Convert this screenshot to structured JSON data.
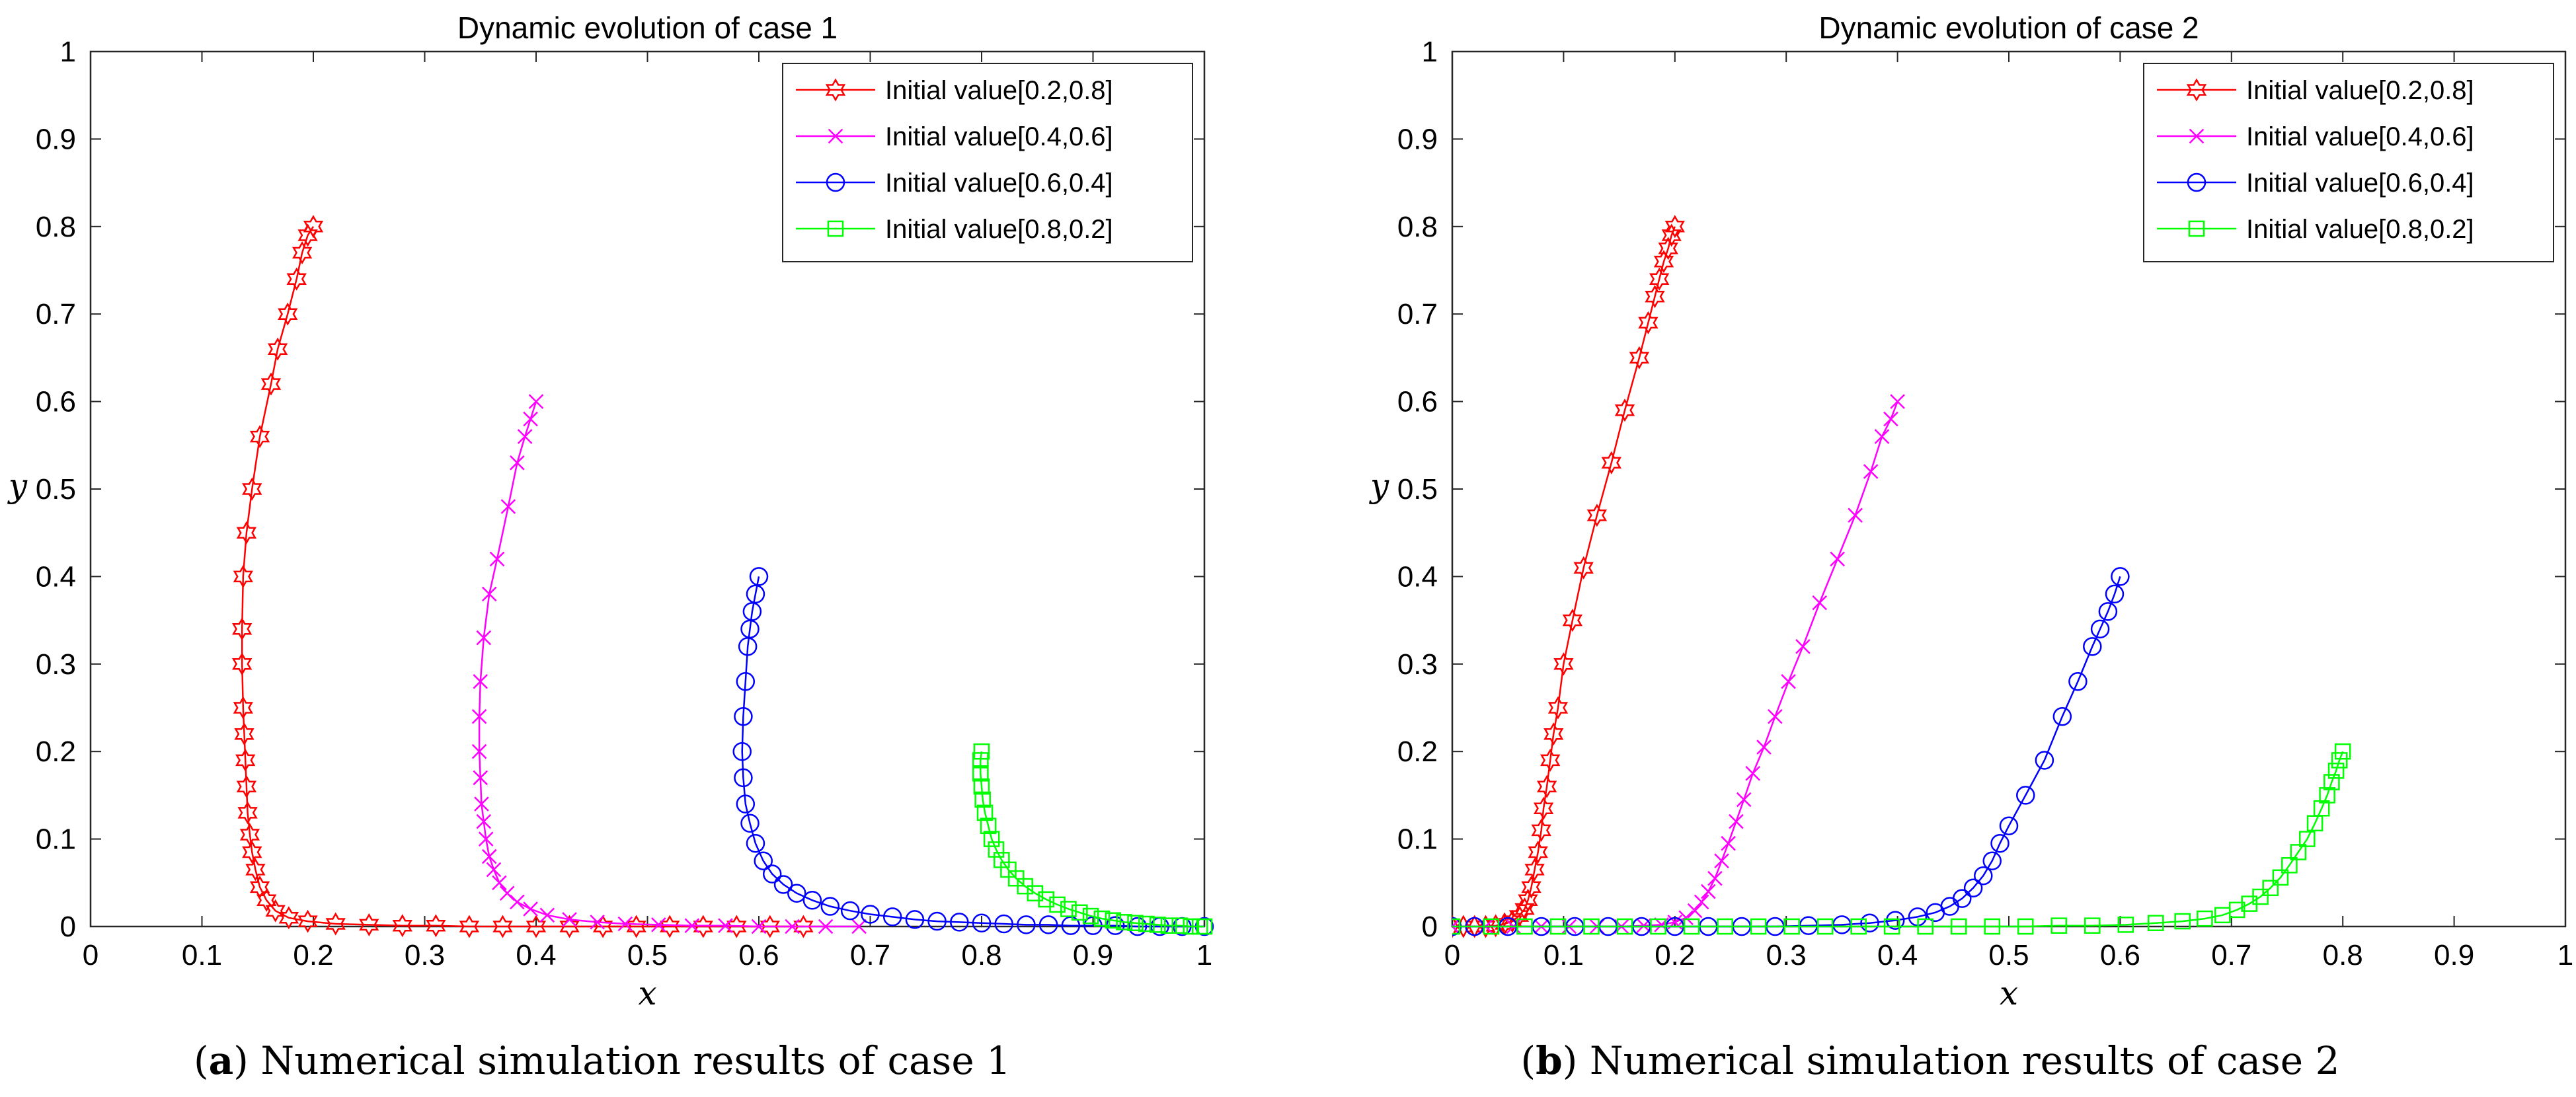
{
  "chart_data": [
    {
      "type": "line",
      "title": "Dynamic evolution of case 1",
      "xlabel": "x",
      "ylabel": "y",
      "xlim": [
        0,
        1
      ],
      "ylim": [
        0,
        1
      ],
      "xticks": [
        "0",
        "0.1",
        "0.2",
        "0.3",
        "0.4",
        "0.5",
        "0.6",
        "0.7",
        "0.8",
        "0.9",
        "1"
      ],
      "yticks": [
        "0",
        "0.1",
        "0.2",
        "0.3",
        "0.4",
        "0.5",
        "0.6",
        "0.7",
        "0.8",
        "0.9",
        "1"
      ],
      "legend_position": "top-right",
      "caption_letter": "a",
      "caption_text": "Numerical simulation results of case 1",
      "series": [
        {
          "name": "Initial value[0.2,0.8]",
          "color": "#ff0000",
          "marker": "hexagram",
          "x": [
            0.2,
            0.195,
            0.19,
            0.185,
            0.177,
            0.168,
            0.162,
            0.152,
            0.145,
            0.14,
            0.137,
            0.136,
            0.136,
            0.137,
            0.138,
            0.139,
            0.14,
            0.141,
            0.143,
            0.145,
            0.148,
            0.152,
            0.158,
            0.166,
            0.178,
            0.195,
            0.22,
            0.25,
            0.28,
            0.31,
            0.34,
            0.37,
            0.4,
            0.43,
            0.46,
            0.49,
            0.52,
            0.55,
            0.58,
            0.61,
            0.64
          ],
          "y": [
            0.8,
            0.79,
            0.77,
            0.74,
            0.7,
            0.66,
            0.62,
            0.56,
            0.5,
            0.45,
            0.4,
            0.34,
            0.3,
            0.25,
            0.22,
            0.19,
            0.16,
            0.13,
            0.105,
            0.085,
            0.065,
            0.045,
            0.03,
            0.018,
            0.01,
            0.006,
            0.003,
            0.002,
            0.001,
            0.001,
            0.0,
            0.0,
            0.0,
            0.0,
            0.0,
            0.0,
            0.0,
            0.0,
            0.0,
            0.0,
            0.0
          ]
        },
        {
          "name": "Initial value[0.4,0.6]",
          "color": "#ff00ff",
          "marker": "x",
          "x": [
            0.4,
            0.395,
            0.39,
            0.383,
            0.375,
            0.365,
            0.358,
            0.353,
            0.35,
            0.349,
            0.349,
            0.35,
            0.351,
            0.353,
            0.355,
            0.358,
            0.362,
            0.367,
            0.374,
            0.383,
            0.395,
            0.41,
            0.43,
            0.455,
            0.48,
            0.51,
            0.54,
            0.57,
            0.6,
            0.63,
            0.66,
            0.69
          ],
          "y": [
            0.6,
            0.58,
            0.56,
            0.53,
            0.48,
            0.42,
            0.38,
            0.33,
            0.28,
            0.24,
            0.2,
            0.17,
            0.14,
            0.12,
            0.1,
            0.08,
            0.065,
            0.05,
            0.038,
            0.028,
            0.02,
            0.013,
            0.008,
            0.005,
            0.003,
            0.002,
            0.001,
            0.001,
            0.0,
            0.0,
            0.0,
            0.0
          ]
        },
        {
          "name": "Initial value[0.6,0.4]",
          "color": "#0000ff",
          "marker": "circle",
          "x": [
            0.6,
            0.597,
            0.594,
            0.592,
            0.59,
            0.588,
            0.586,
            0.585,
            0.586,
            0.588,
            0.592,
            0.597,
            0.604,
            0.612,
            0.622,
            0.634,
            0.648,
            0.664,
            0.682,
            0.7,
            0.72,
            0.74,
            0.76,
            0.78,
            0.8,
            0.82,
            0.84,
            0.86,
            0.88,
            0.9,
            0.92,
            0.94,
            0.96,
            0.98,
            1.0
          ],
          "y": [
            0.4,
            0.38,
            0.36,
            0.34,
            0.32,
            0.28,
            0.24,
            0.2,
            0.17,
            0.14,
            0.118,
            0.095,
            0.075,
            0.06,
            0.048,
            0.038,
            0.03,
            0.023,
            0.018,
            0.014,
            0.011,
            0.008,
            0.006,
            0.005,
            0.004,
            0.003,
            0.002,
            0.002,
            0.001,
            0.001,
            0.001,
            0.0,
            0.0,
            0.0,
            0.0
          ]
        },
        {
          "name": "Initial value[0.8,0.2]",
          "color": "#00ff00",
          "marker": "square",
          "x": [
            0.8,
            0.799,
            0.799,
            0.8,
            0.801,
            0.803,
            0.806,
            0.809,
            0.813,
            0.818,
            0.824,
            0.831,
            0.839,
            0.848,
            0.858,
            0.868,
            0.878,
            0.888,
            0.898,
            0.908,
            0.918,
            0.928,
            0.938,
            0.948,
            0.958,
            0.968,
            0.978,
            0.988,
            0.996,
            1.0
          ],
          "y": [
            0.2,
            0.19,
            0.175,
            0.16,
            0.145,
            0.13,
            0.115,
            0.1,
            0.088,
            0.076,
            0.065,
            0.055,
            0.046,
            0.038,
            0.031,
            0.025,
            0.02,
            0.016,
            0.012,
            0.009,
            0.007,
            0.005,
            0.004,
            0.003,
            0.002,
            0.001,
            0.001,
            0.0,
            0.0,
            0.0
          ]
        }
      ]
    },
    {
      "type": "line",
      "title": "Dynamic evolution of case 2",
      "xlabel": "x",
      "ylabel": "y",
      "xlim": [
        0,
        1
      ],
      "ylim": [
        0,
        1
      ],
      "xticks": [
        "0",
        "0.1",
        "0.2",
        "0.3",
        "0.4",
        "0.5",
        "0.6",
        "0.7",
        "0.8",
        "0.9",
        "1"
      ],
      "yticks": [
        "0",
        "0.1",
        "0.2",
        "0.3",
        "0.4",
        "0.5",
        "0.6",
        "0.7",
        "0.8",
        "0.9",
        "1"
      ],
      "legend_position": "top-right",
      "caption_letter": "b",
      "caption_text": "Numerical simulation results of case 2",
      "series": [
        {
          "name": "Initial value[0.2,0.8]",
          "color": "#ff0000",
          "marker": "hexagram",
          "x": [
            0.2,
            0.197,
            0.194,
            0.19,
            0.186,
            0.182,
            0.176,
            0.168,
            0.155,
            0.143,
            0.13,
            0.118,
            0.108,
            0.1,
            0.095,
            0.091,
            0.088,
            0.085,
            0.082,
            0.08,
            0.077,
            0.074,
            0.071,
            0.068,
            0.065,
            0.06,
            0.054,
            0.047,
            0.039,
            0.03,
            0.02,
            0.01,
            0.0
          ],
          "y": [
            0.8,
            0.79,
            0.775,
            0.76,
            0.74,
            0.72,
            0.69,
            0.65,
            0.59,
            0.53,
            0.47,
            0.41,
            0.35,
            0.3,
            0.25,
            0.22,
            0.19,
            0.16,
            0.135,
            0.11,
            0.085,
            0.065,
            0.045,
            0.03,
            0.02,
            0.012,
            0.006,
            0.003,
            0.001,
            0.0,
            0.0,
            0.0,
            0.0
          ]
        },
        {
          "name": "Initial value[0.4,0.6]",
          "color": "#ff00ff",
          "marker": "x",
          "x": [
            0.4,
            0.394,
            0.386,
            0.376,
            0.362,
            0.346,
            0.33,
            0.315,
            0.302,
            0.29,
            0.28,
            0.27,
            0.262,
            0.255,
            0.248,
            0.242,
            0.236,
            0.23,
            0.224,
            0.218,
            0.21,
            0.2,
            0.188,
            0.172,
            0.152,
            0.13,
            0.105,
            0.08,
            0.055,
            0.03,
            0.0
          ],
          "y": [
            0.6,
            0.58,
            0.56,
            0.52,
            0.47,
            0.42,
            0.37,
            0.32,
            0.28,
            0.24,
            0.205,
            0.175,
            0.145,
            0.12,
            0.095,
            0.075,
            0.055,
            0.04,
            0.028,
            0.018,
            0.01,
            0.005,
            0.002,
            0.001,
            0.0,
            0.0,
            0.0,
            0.0,
            0.0,
            0.0,
            0.0
          ]
        },
        {
          "name": "Initial value[0.6,0.4]",
          "color": "#0000ff",
          "marker": "circle",
          "x": [
            0.6,
            0.595,
            0.589,
            0.582,
            0.575,
            0.562,
            0.548,
            0.532,
            0.515,
            0.5,
            0.492,
            0.485,
            0.477,
            0.468,
            0.458,
            0.447,
            0.434,
            0.418,
            0.398,
            0.375,
            0.35,
            0.32,
            0.29,
            0.26,
            0.23,
            0.2,
            0.17,
            0.14,
            0.11,
            0.08,
            0.05,
            0.02,
            0.0
          ],
          "y": [
            0.4,
            0.38,
            0.36,
            0.34,
            0.32,
            0.28,
            0.24,
            0.19,
            0.15,
            0.115,
            0.095,
            0.075,
            0.058,
            0.044,
            0.032,
            0.023,
            0.016,
            0.011,
            0.007,
            0.004,
            0.002,
            0.001,
            0.0,
            0.0,
            0.0,
            0.0,
            0.0,
            0.0,
            0.0,
            0.0,
            0.0,
            0.0,
            0.0
          ]
        },
        {
          "name": "Initial value[0.8,0.2]",
          "color": "#00ff00",
          "marker": "square",
          "x": [
            0.8,
            0.797,
            0.794,
            0.79,
            0.786,
            0.781,
            0.775,
            0.768,
            0.76,
            0.752,
            0.744,
            0.735,
            0.726,
            0.716,
            0.705,
            0.692,
            0.676,
            0.656,
            0.632,
            0.605,
            0.575,
            0.545,
            0.515,
            0.485,
            0.455,
            0.425,
            0.395,
            0.365,
            0.335,
            0.305,
            0.275,
            0.245,
            0.215,
            0.185,
            0.155,
            0.125,
            0.095,
            0.065,
            0.035,
            0.0
          ],
          "y": [
            0.2,
            0.19,
            0.178,
            0.165,
            0.15,
            0.135,
            0.118,
            0.1,
            0.085,
            0.07,
            0.056,
            0.044,
            0.034,
            0.026,
            0.019,
            0.013,
            0.009,
            0.006,
            0.004,
            0.002,
            0.001,
            0.001,
            0.0,
            0.0,
            0.0,
            0.0,
            0.0,
            0.0,
            0.0,
            0.0,
            0.0,
            0.0,
            0.0,
            0.0,
            0.0,
            0.0,
            0.0,
            0.0,
            0.0,
            0.0
          ]
        }
      ]
    }
  ]
}
